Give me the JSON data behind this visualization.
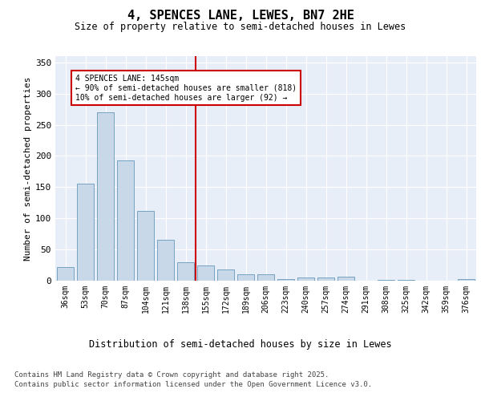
{
  "title": "4, SPENCES LANE, LEWES, BN7 2HE",
  "subtitle": "Size of property relative to semi-detached houses in Lewes",
  "xlabel": "Distribution of semi-detached houses by size in Lewes",
  "ylabel": "Number of semi-detached properties",
  "categories": [
    "36sqm",
    "53sqm",
    "70sqm",
    "87sqm",
    "104sqm",
    "121sqm",
    "138sqm",
    "155sqm",
    "172sqm",
    "189sqm",
    "206sqm",
    "223sqm",
    "240sqm",
    "257sqm",
    "274sqm",
    "291sqm",
    "308sqm",
    "325sqm",
    "342sqm",
    "359sqm",
    "376sqm"
  ],
  "values": [
    22,
    155,
    270,
    193,
    112,
    66,
    30,
    24,
    18,
    10,
    10,
    3,
    5,
    5,
    6,
    0,
    1,
    1,
    0,
    0,
    2
  ],
  "bar_color": "#c8d8e8",
  "bar_edge_color": "#6699bb",
  "vline_color": "#cc0000",
  "vline_label": "4 SPENCES LANE: 145sqm",
  "vline_note1": "← 90% of semi-detached houses are smaller (818)",
  "vline_note2": "10% of semi-detached houses are larger (92) →",
  "ylim": [
    0,
    360
  ],
  "yticks": [
    0,
    50,
    100,
    150,
    200,
    250,
    300,
    350
  ],
  "background_color": "#e8eef8",
  "footer1": "Contains HM Land Registry data © Crown copyright and database right 2025.",
  "footer2": "Contains public sector information licensed under the Open Government Licence v3.0."
}
